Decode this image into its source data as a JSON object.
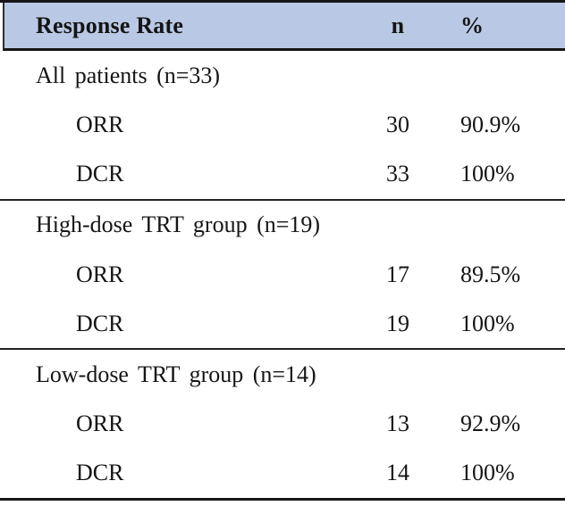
{
  "colors": {
    "header_bg": "#b9c9e5",
    "rule": "#161616",
    "text": "#151515"
  },
  "table": {
    "header": {
      "col_label": "Response Rate",
      "col_n": "n",
      "col_pct": "%"
    },
    "sections": [
      {
        "label": "All patients (n=33)",
        "rows": [
          {
            "name": "ORR",
            "n": "30",
            "pct": "90.9%"
          },
          {
            "name": "DCR",
            "n": "33",
            "pct": "100%"
          }
        ]
      },
      {
        "label": "High-dose TRT group (n=19)",
        "rows": [
          {
            "name": "ORR",
            "n": "17",
            "pct": "89.5%"
          },
          {
            "name": "DCR",
            "n": "19",
            "pct": "100%"
          }
        ]
      },
      {
        "label": "Low-dose TRT group (n=14)",
        "rows": [
          {
            "name": "ORR",
            "n": "13",
            "pct": "92.9%"
          },
          {
            "name": "DCR",
            "n": "14",
            "pct": "100%"
          }
        ]
      }
    ]
  }
}
